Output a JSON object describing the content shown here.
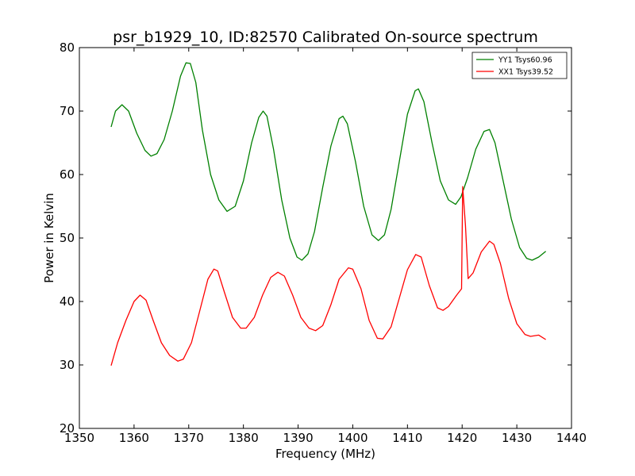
{
  "chart_data": {
    "type": "line",
    "title": "psr_b1929_10, ID:82570 Calibrated On-source spectrum",
    "xlabel": "Frequency (MHz)",
    "ylabel": "Power in Kelvin",
    "xlim": [
      1350,
      1440
    ],
    "ylim": [
      20,
      80
    ],
    "xticks": [
      "1350",
      "1360",
      "1370",
      "1380",
      "1390",
      "1400",
      "1410",
      "1420",
      "1430",
      "1440"
    ],
    "yticks": [
      "20",
      "30",
      "40",
      "50",
      "60",
      "70",
      "80"
    ],
    "grid": false,
    "legend_position": "top-right",
    "series": [
      {
        "name": "YY1 Tsys60.96",
        "color": "#008000",
        "points": [
          [
            1355.8,
            67.5
          ],
          [
            1356.6,
            70.0
          ],
          [
            1357.8,
            71.0
          ],
          [
            1359.0,
            70.0
          ],
          [
            1360.5,
            66.5
          ],
          [
            1362.0,
            63.8
          ],
          [
            1363.1,
            62.9
          ],
          [
            1364.2,
            63.3
          ],
          [
            1365.5,
            65.5
          ],
          [
            1367.0,
            70.0
          ],
          [
            1368.5,
            75.5
          ],
          [
            1369.5,
            77.6
          ],
          [
            1370.3,
            77.5
          ],
          [
            1371.3,
            74.5
          ],
          [
            1372.5,
            67.0
          ],
          [
            1374.0,
            60.0
          ],
          [
            1375.5,
            56.0
          ],
          [
            1377.0,
            54.2
          ],
          [
            1378.5,
            55.0
          ],
          [
            1380.0,
            59.0
          ],
          [
            1381.5,
            65.0
          ],
          [
            1382.8,
            69.0
          ],
          [
            1383.6,
            70.0
          ],
          [
            1384.3,
            69.2
          ],
          [
            1385.5,
            64.0
          ],
          [
            1387.0,
            56.0
          ],
          [
            1388.5,
            50.0
          ],
          [
            1389.8,
            47.0
          ],
          [
            1390.7,
            46.5
          ],
          [
            1391.8,
            47.5
          ],
          [
            1393.0,
            51.0
          ],
          [
            1394.5,
            58.0
          ],
          [
            1396.0,
            64.5
          ],
          [
            1397.5,
            68.8
          ],
          [
            1398.2,
            69.2
          ],
          [
            1399.0,
            68.0
          ],
          [
            1400.5,
            62.0
          ],
          [
            1402.0,
            55.0
          ],
          [
            1403.5,
            50.5
          ],
          [
            1404.7,
            49.6
          ],
          [
            1405.8,
            50.5
          ],
          [
            1407.0,
            54.5
          ],
          [
            1408.5,
            62.0
          ],
          [
            1410.0,
            69.5
          ],
          [
            1411.4,
            73.2
          ],
          [
            1412.0,
            73.5
          ],
          [
            1413.0,
            71.5
          ],
          [
            1414.5,
            65.0
          ],
          [
            1416.0,
            59.0
          ],
          [
            1417.5,
            56.0
          ],
          [
            1418.8,
            55.3
          ],
          [
            1419.8,
            56.5
          ],
          [
            1421.0,
            59.5
          ],
          [
            1422.5,
            64.0
          ],
          [
            1424.0,
            66.8
          ],
          [
            1425.0,
            67.1
          ],
          [
            1426.0,
            65.0
          ],
          [
            1427.5,
            59.0
          ],
          [
            1429.0,
            53.0
          ],
          [
            1430.5,
            48.5
          ],
          [
            1431.8,
            46.8
          ],
          [
            1432.8,
            46.5
          ],
          [
            1434.0,
            47.0
          ],
          [
            1435.3,
            47.9
          ]
        ]
      },
      {
        "name": "XX1 Tsys39.52",
        "color": "#ff0000",
        "points": [
          [
            1355.8,
            29.9
          ],
          [
            1357.0,
            33.5
          ],
          [
            1358.5,
            37.0
          ],
          [
            1360.0,
            40.0
          ],
          [
            1361.1,
            41.0
          ],
          [
            1362.2,
            40.2
          ],
          [
            1363.5,
            37.0
          ],
          [
            1365.0,
            33.5
          ],
          [
            1366.5,
            31.5
          ],
          [
            1368.0,
            30.6
          ],
          [
            1369.0,
            30.9
          ],
          [
            1370.5,
            33.5
          ],
          [
            1372.0,
            38.5
          ],
          [
            1373.5,
            43.5
          ],
          [
            1374.6,
            45.1
          ],
          [
            1375.3,
            44.8
          ],
          [
            1376.5,
            41.5
          ],
          [
            1378.0,
            37.5
          ],
          [
            1379.5,
            35.8
          ],
          [
            1380.5,
            35.8
          ],
          [
            1382.0,
            37.5
          ],
          [
            1383.5,
            41.0
          ],
          [
            1385.0,
            43.8
          ],
          [
            1386.3,
            44.6
          ],
          [
            1387.5,
            44.0
          ],
          [
            1389.0,
            41.0
          ],
          [
            1390.5,
            37.5
          ],
          [
            1392.0,
            35.8
          ],
          [
            1393.2,
            35.4
          ],
          [
            1394.5,
            36.2
          ],
          [
            1396.0,
            39.5
          ],
          [
            1397.5,
            43.5
          ],
          [
            1399.2,
            45.3
          ],
          [
            1400.0,
            45.1
          ],
          [
            1401.5,
            42.0
          ],
          [
            1403.0,
            37.0
          ],
          [
            1404.5,
            34.2
          ],
          [
            1405.5,
            34.1
          ],
          [
            1407.0,
            36.0
          ],
          [
            1408.5,
            40.5
          ],
          [
            1410.0,
            45.0
          ],
          [
            1411.5,
            47.4
          ],
          [
            1412.5,
            47.0
          ],
          [
            1414.0,
            42.5
          ],
          [
            1415.5,
            39.0
          ],
          [
            1416.5,
            38.6
          ],
          [
            1417.5,
            39.2
          ],
          [
            1419.0,
            41.0
          ],
          [
            1419.9,
            42.0
          ],
          [
            1420.1,
            58.1
          ],
          [
            1420.6,
            52.0
          ],
          [
            1421.1,
            43.6
          ],
          [
            1422.0,
            44.5
          ],
          [
            1423.5,
            47.8
          ],
          [
            1425.0,
            49.5
          ],
          [
            1425.8,
            49.0
          ],
          [
            1427.0,
            46.0
          ],
          [
            1428.5,
            40.5
          ],
          [
            1430.0,
            36.5
          ],
          [
            1431.5,
            34.8
          ],
          [
            1432.5,
            34.5
          ],
          [
            1434.0,
            34.7
          ],
          [
            1435.3,
            34.0
          ]
        ]
      }
    ]
  }
}
